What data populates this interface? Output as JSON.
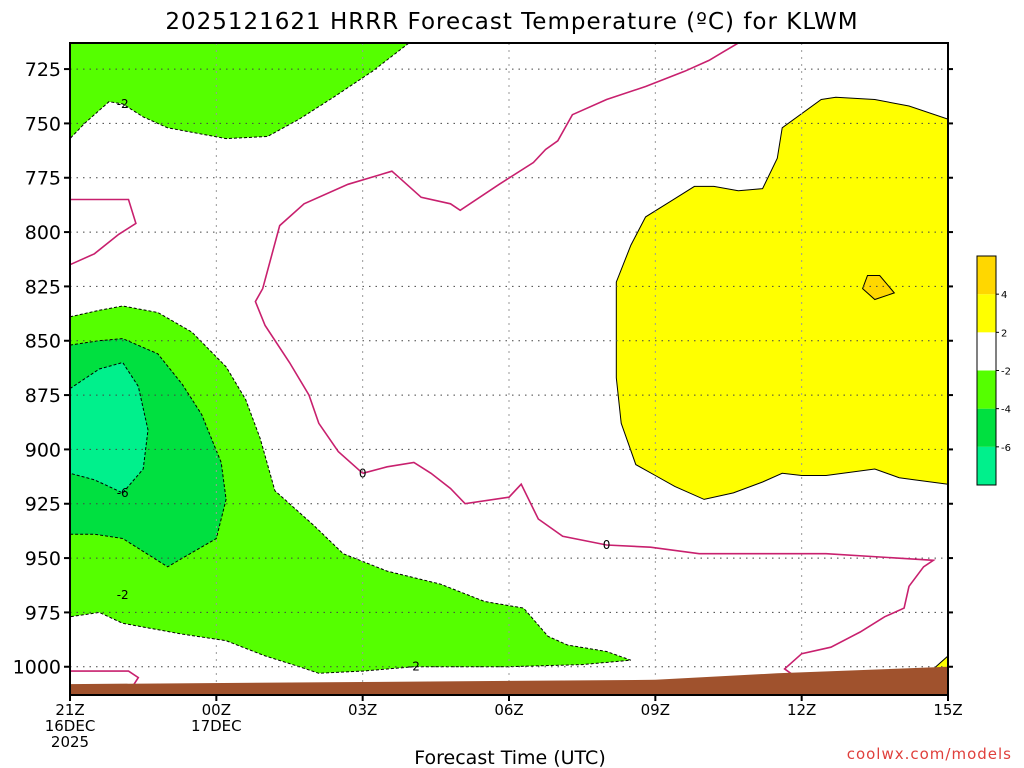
{
  "chart_data": {
    "type": "contour",
    "title": "2025121621 HRRR Forecast Temperature (ºC) for KLWM",
    "xlabel": "Forecast Time (UTC)",
    "credit": "coolwx.com/models",
    "yaxis": {
      "unit": "hPa",
      "inverted": true,
      "range": [
        713,
        1013
      ],
      "ticks": [
        725,
        750,
        775,
        800,
        825,
        850,
        875,
        900,
        925,
        950,
        975,
        1000
      ],
      "tick_labels": [
        "725",
        "750",
        "775",
        "800",
        "825",
        "850",
        "875",
        "900",
        "925",
        "950",
        "975",
        "1000"
      ]
    },
    "xaxis": {
      "range_hours": [
        0,
        18
      ],
      "ticks": [
        {
          "h": 0,
          "line1": "21Z",
          "line2": "16DEC",
          "line3": "2025"
        },
        {
          "h": 3,
          "line1": "00Z",
          "line2": "17DEC",
          "line3": ""
        },
        {
          "h": 6,
          "line1": "03Z",
          "line2": "",
          "line3": ""
        },
        {
          "h": 9,
          "line1": "06Z",
          "line2": "",
          "line3": ""
        },
        {
          "h": 12,
          "line1": "09Z",
          "line2": "",
          "line3": ""
        },
        {
          "h": 15,
          "line1": "12Z",
          "line2": "",
          "line3": ""
        },
        {
          "h": 18,
          "line1": "15Z",
          "line2": "",
          "line3": ""
        }
      ]
    },
    "grid": true,
    "colors": {
      "band_2_4": "#ffff00",
      "band_4_6": "#ffd700",
      "band_m2_m4": "#55ff00",
      "band_m4_m6": "#00e040",
      "band_m6_m8": "#00f08c",
      "terrain": "#a0522d",
      "zero_line": "#c8206e"
    },
    "colorbar": {
      "colors": [
        "#00f08c",
        "#00e040",
        "#55ff00",
        "#ffffff",
        "#ffff00",
        "#ffd700"
      ],
      "tick_labels": [
        "-6",
        "-4",
        "-2",
        "2",
        "4"
      ]
    },
    "contour_labels": [
      {
        "text": "-2",
        "h": 1.08,
        "p": 741
      },
      {
        "text": "-6",
        "h": 1.08,
        "p": 920
      },
      {
        "text": "-2",
        "h": 1.08,
        "p": 967
      },
      {
        "text": "0",
        "h": 6.0,
        "p": 911
      },
      {
        "text": "0",
        "h": 11.0,
        "p": 944
      },
      {
        "text": "-2",
        "h": 7.05,
        "p": 1000
      }
    ],
    "regions": [
      {
        "name": "cold-region-upper",
        "fill": "#55ff00",
        "stroke": "dashed",
        "pts": [
          [
            0,
            757
          ],
          [
            0,
            713
          ],
          [
            6.95,
            713
          ],
          [
            6.2,
            726
          ],
          [
            5.4,
            738
          ],
          [
            4.7,
            748
          ],
          [
            4.05,
            756
          ],
          [
            3.2,
            757
          ],
          [
            2.0,
            752
          ],
          [
            1.5,
            747
          ],
          [
            1.08,
            741
          ],
          [
            0.8,
            740
          ],
          [
            0.3,
            750
          ],
          [
            0,
            757
          ]
        ]
      },
      {
        "name": "cold-region-lower",
        "fill": "#55ff00",
        "stroke": "dashed",
        "pts": [
          [
            0,
            839
          ],
          [
            0.6,
            836
          ],
          [
            1.08,
            834
          ],
          [
            1.8,
            837
          ],
          [
            2.5,
            846
          ],
          [
            3.2,
            862
          ],
          [
            3.6,
            877
          ],
          [
            3.9,
            895
          ],
          [
            4.2,
            919
          ],
          [
            5.0,
            935
          ],
          [
            5.6,
            948
          ],
          [
            6.5,
            956
          ],
          [
            7.6,
            962
          ],
          [
            8.5,
            970
          ],
          [
            9.3,
            973
          ],
          [
            9.8,
            986
          ],
          [
            10.2,
            990
          ],
          [
            11.0,
            993
          ],
          [
            11.5,
            997
          ],
          [
            10.5,
            999
          ],
          [
            9.0,
            1000
          ],
          [
            8.0,
            1000
          ],
          [
            7.05,
            1000
          ],
          [
            6.0,
            1002
          ],
          [
            5.1,
            1003
          ],
          [
            4.7,
            1000
          ],
          [
            4.0,
            995
          ],
          [
            3.2,
            988
          ],
          [
            2.3,
            985
          ],
          [
            1.08,
            980
          ],
          [
            0.6,
            975
          ],
          [
            0,
            977
          ],
          [
            0,
            839
          ]
        ]
      },
      {
        "name": "cold-core-mid",
        "fill": "#00e040",
        "stroke": "dashed",
        "pts": [
          [
            0,
            852
          ],
          [
            0.6,
            850
          ],
          [
            1.08,
            849
          ],
          [
            1.8,
            856
          ],
          [
            2.3,
            870
          ],
          [
            2.7,
            884
          ],
          [
            3.1,
            906
          ],
          [
            3.2,
            923
          ],
          [
            3.0,
            941
          ],
          [
            2.0,
            954
          ],
          [
            1.08,
            941
          ],
          [
            0.5,
            939
          ],
          [
            0,
            939
          ],
          [
            0,
            852
          ]
        ]
      },
      {
        "name": "cold-core-center",
        "fill": "#00f08c",
        "stroke": "dashed",
        "pts": [
          [
            0,
            872
          ],
          [
            0.6,
            863
          ],
          [
            1.08,
            860
          ],
          [
            1.4,
            871
          ],
          [
            1.6,
            891
          ],
          [
            1.5,
            909
          ],
          [
            1.08,
            920
          ],
          [
            0.5,
            914
          ],
          [
            0,
            911
          ],
          [
            0,
            872
          ]
        ]
      },
      {
        "name": "cold-sliver-surface",
        "fill": "#55ff00",
        "stroke": "dashed",
        "pts": [
          [
            3.6,
            1013
          ],
          [
            4.0,
            1012
          ],
          [
            5.0,
            1010
          ],
          [
            6.0,
            1011
          ],
          [
            6.5,
            1013
          ],
          [
            3.6,
            1013
          ]
        ]
      },
      {
        "name": "warm-region-main",
        "fill": "#ffff00",
        "stroke": "solid",
        "pts": [
          [
            18,
            748
          ],
          [
            17.2,
            742
          ],
          [
            16.5,
            739
          ],
          [
            15.7,
            738
          ],
          [
            15.4,
            739
          ],
          [
            14.6,
            752
          ],
          [
            14.5,
            766
          ],
          [
            14.2,
            780
          ],
          [
            13.7,
            781
          ],
          [
            13.2,
            779
          ],
          [
            12.8,
            779
          ],
          [
            12.3,
            786
          ],
          [
            11.8,
            793
          ],
          [
            11.5,
            806
          ],
          [
            11.2,
            823
          ],
          [
            11.2,
            867
          ],
          [
            11.3,
            888
          ],
          [
            11.6,
            907
          ],
          [
            12.0,
            912
          ],
          [
            12.4,
            917
          ],
          [
            13.0,
            923
          ],
          [
            13.6,
            920
          ],
          [
            14.2,
            915
          ],
          [
            14.6,
            911
          ],
          [
            15.0,
            912
          ],
          [
            15.5,
            912
          ],
          [
            16.5,
            909
          ],
          [
            17.0,
            913
          ],
          [
            17.3,
            914
          ],
          [
            18,
            916
          ],
          [
            18,
            748
          ]
        ]
      },
      {
        "name": "warm-patch-small",
        "fill": "#ffd700",
        "stroke": "solid",
        "pts": [
          [
            16.25,
            826
          ],
          [
            16.5,
            831
          ],
          [
            16.9,
            828
          ],
          [
            16.6,
            820
          ],
          [
            16.35,
            820
          ],
          [
            16.25,
            826
          ]
        ]
      },
      {
        "name": "warm-region-corner",
        "fill": "#ffff00",
        "stroke": "solid",
        "pts": [
          [
            17.6,
            1003
          ],
          [
            18,
            995
          ],
          [
            18,
            1013
          ],
          [
            17.6,
            1013
          ],
          [
            17.6,
            1003
          ]
        ]
      }
    ],
    "zero_lines": [
      {
        "pts": [
          [
            0,
            785
          ],
          [
            1.2,
            785
          ],
          [
            1.35,
            796
          ],
          [
            1.0,
            801
          ],
          [
            0.5,
            810
          ],
          [
            0,
            815
          ]
        ]
      },
      {
        "pts": [
          [
            0,
            1002
          ],
          [
            1.2,
            1002
          ],
          [
            1.4,
            1005
          ],
          [
            1.2,
            1012
          ],
          [
            0.9,
            1013
          ]
        ]
      },
      {
        "pts": [
          [
            6.0,
            911
          ],
          [
            6.5,
            908
          ],
          [
            7.05,
            906
          ],
          [
            7.4,
            911
          ],
          [
            7.8,
            918
          ],
          [
            8.1,
            925
          ],
          [
            9.0,
            922
          ],
          [
            9.25,
            916
          ],
          [
            9.6,
            932
          ],
          [
            10.1,
            940
          ],
          [
            11.0,
            944
          ],
          [
            11.9,
            945
          ],
          [
            12.9,
            948
          ],
          [
            14.0,
            948
          ],
          [
            15.5,
            948
          ],
          [
            17.7,
            951
          ],
          [
            17.5,
            954
          ],
          [
            17.2,
            963
          ],
          [
            17.1,
            973
          ],
          [
            16.7,
            977
          ],
          [
            16.2,
            984
          ],
          [
            15.6,
            991
          ],
          [
            15.0,
            994
          ],
          [
            14.65,
            1001
          ],
          [
            14.9,
            1005
          ],
          [
            15.3,
            1013
          ]
        ]
      },
      {
        "pts": [
          [
            6.0,
            911
          ],
          [
            5.5,
            901
          ],
          [
            5.1,
            888
          ],
          [
            4.9,
            875
          ],
          [
            4.5,
            860
          ],
          [
            4.0,
            843
          ],
          [
            3.8,
            832
          ],
          [
            3.95,
            826
          ],
          [
            4.3,
            797
          ],
          [
            4.8,
            787
          ],
          [
            5.7,
            778
          ],
          [
            6.6,
            772
          ],
          [
            6.75,
            775
          ],
          [
            7.2,
            784
          ],
          [
            7.8,
            787
          ],
          [
            8.0,
            790
          ],
          [
            8.8,
            778
          ],
          [
            9.5,
            768
          ],
          [
            9.75,
            762
          ],
          [
            10.0,
            758
          ],
          [
            10.3,
            746
          ],
          [
            11.0,
            739
          ],
          [
            11.8,
            733
          ],
          [
            12.6,
            726
          ],
          [
            13.1,
            721
          ],
          [
            13.4,
            717
          ],
          [
            13.7,
            713
          ]
        ]
      }
    ],
    "terrain": [
      [
        0,
        1008
      ],
      [
        6.0,
        1007
      ],
      [
        12.0,
        1006
      ],
      [
        14.5,
        1003
      ],
      [
        18,
        1000
      ],
      [
        18,
        1015
      ],
      [
        0,
        1015
      ]
    ]
  }
}
